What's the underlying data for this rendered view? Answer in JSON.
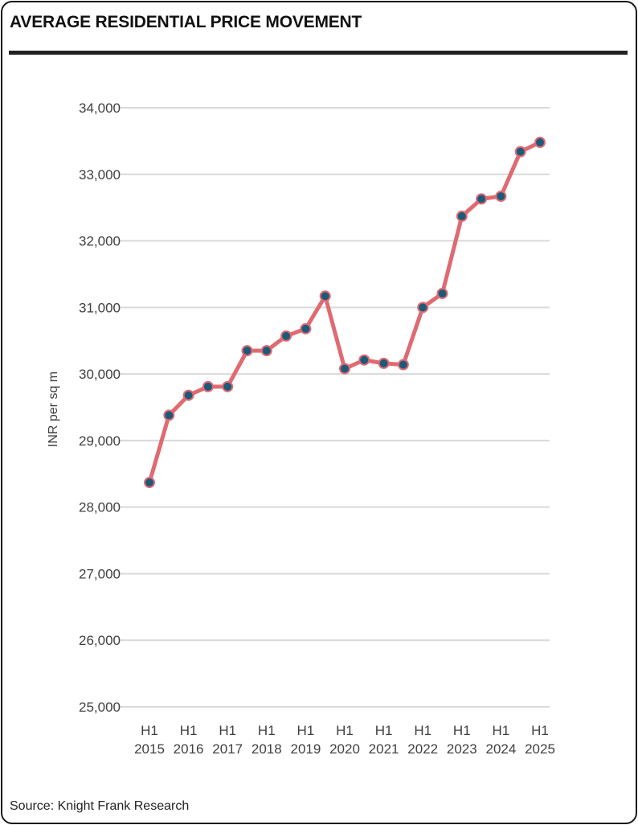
{
  "header": {
    "title": "AVERAGE RESIDENTIAL PRICE MOVEMENT"
  },
  "footer": {
    "source": "Source: Knight Frank Research"
  },
  "colors": {
    "line": "#e06a72",
    "marker_fill": "#1d5a7a",
    "marker_stroke": "#e06a72",
    "grid": "#d9d9d9",
    "text": "#404040"
  },
  "chart_data": {
    "type": "line",
    "title": "",
    "xlabel": "",
    "ylabel": "INR per sq m",
    "ylim": [
      25000,
      34000
    ],
    "yticks": [
      "25,000",
      "26,000",
      "27,000",
      "28,000",
      "29,000",
      "30,000",
      "31,000",
      "32,000",
      "33,000",
      "34,000"
    ],
    "grid": true,
    "x_tick_labels": [
      {
        "line1": "H1",
        "line2": "2015"
      },
      {
        "line1": "H1",
        "line2": "2016"
      },
      {
        "line1": "H1",
        "line2": "2017"
      },
      {
        "line1": "H1",
        "line2": "2018"
      },
      {
        "line1": "H1",
        "line2": "2019"
      },
      {
        "line1": "H1",
        "line2": "2020"
      },
      {
        "line1": "H1",
        "line2": "2021"
      },
      {
        "line1": "H1",
        "line2": "2022"
      },
      {
        "line1": "H1",
        "line2": "2023"
      },
      {
        "line1": "H1",
        "line2": "2024"
      },
      {
        "line1": "H1",
        "line2": "2025"
      }
    ],
    "series": [
      {
        "values": [
          28370,
          29380,
          29680,
          29810,
          29810,
          30350,
          30350,
          30570,
          30680,
          31170,
          30080,
          30210,
          30160,
          30140,
          31000,
          31210,
          32370,
          32630,
          32670,
          33340,
          33480
        ]
      }
    ]
  }
}
